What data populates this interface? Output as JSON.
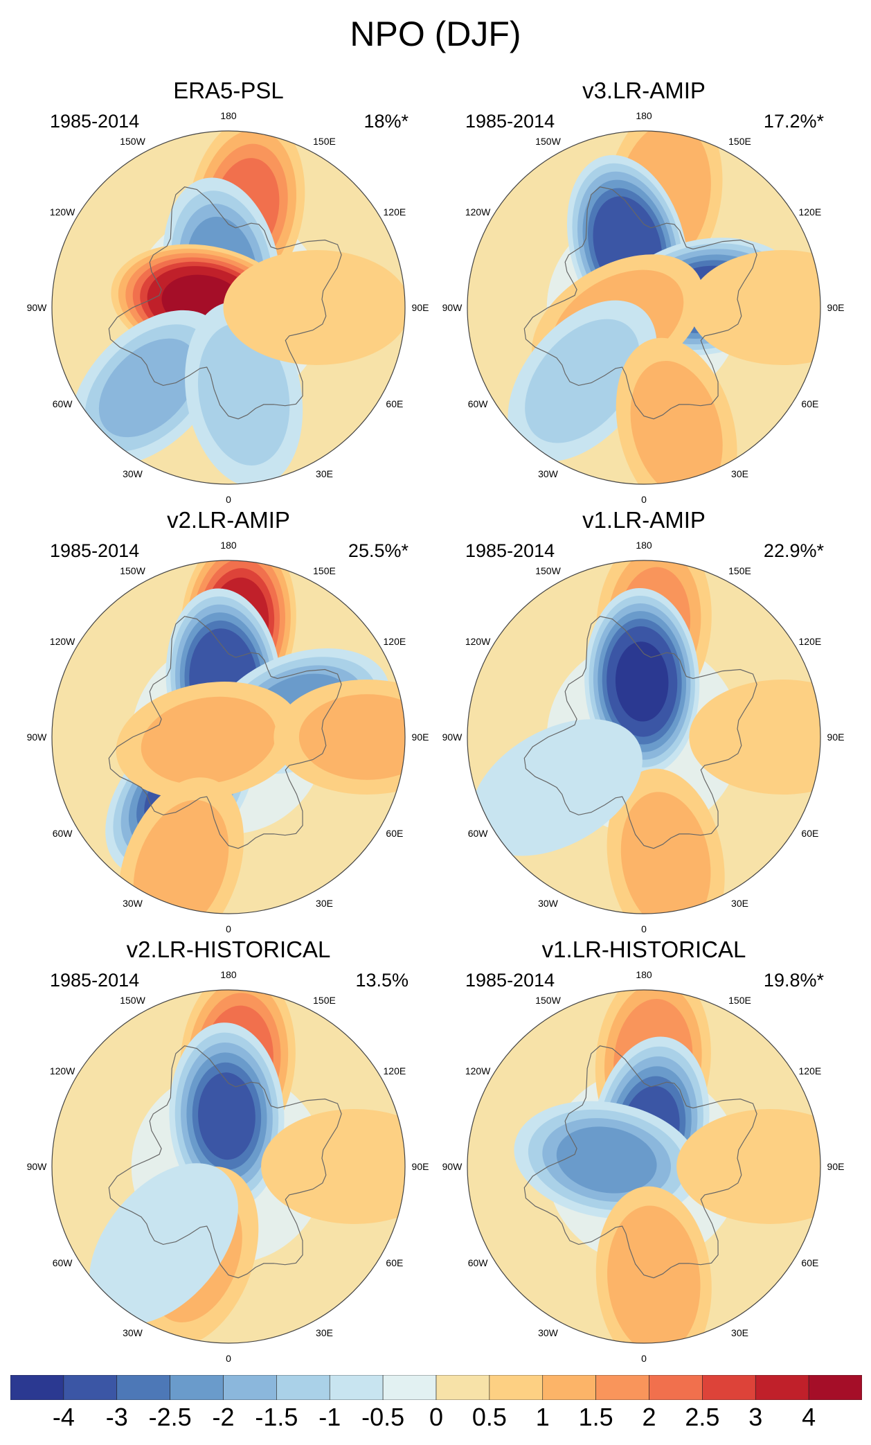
{
  "figure_title": "NPO (DJF)",
  "colors": {
    "-4.25": "#2b3991",
    "-3.5": "#3b56a5",
    "-2.75": "#4d78b7",
    "-2.25": "#6a9bcb",
    "-1.75": "#8bb7dc",
    "-1.25": "#aad1e8",
    "-0.75": "#c8e4f0",
    "-0.25": "#e2f1f2",
    "0.25": "#f7e2a8",
    "0.75": "#fdd083",
    "1.25": "#fcb468",
    "1.75": "#f9955b",
    "2.25": "#f1704d",
    "2.75": "#dd4339",
    "3.5": "#c0202a",
    "4.25": "#a50e28"
  },
  "chart_data": [
    {
      "type": "contour-map",
      "title": "ERA5-PSL",
      "period": "1985-2014",
      "variance": "18%*",
      "projection": "north polar stereographic",
      "lon_labels": [
        "180",
        "150E",
        "120E",
        "90E",
        "60E",
        "30E",
        "0",
        "30W",
        "60W",
        "90W",
        "120W",
        "150W"
      ],
      "features": [
        {
          "type": "high",
          "lon": 170,
          "colat": 40,
          "peak": 2.0
        },
        {
          "type": "low",
          "lon": -170,
          "colat": 15,
          "peak": -2.2
        },
        {
          "type": "high",
          "lon": -100,
          "colat": 10,
          "peak": 4.2
        },
        {
          "type": "low",
          "lon": -45,
          "colat": 45,
          "peak": -1.6
        },
        {
          "type": "low",
          "lon": 10,
          "colat": 35,
          "peak": -1.2
        },
        {
          "type": "high",
          "lon": 90,
          "colat": 35,
          "peak": 0.8
        }
      ]
    },
    {
      "type": "contour-map",
      "title": "v3.LR-AMIP",
      "period": "1985-2014",
      "variance": "17.2%*",
      "projection": "north polar stereographic",
      "lon_labels": [
        "180",
        "150E",
        "120E",
        "90E",
        "60E",
        "30E",
        "0",
        "30W",
        "60W",
        "90W",
        "120W",
        "150W"
      ],
      "features": [
        {
          "type": "high",
          "lon": 170,
          "colat": 45,
          "peak": 1.4
        },
        {
          "type": "low",
          "lon": -165,
          "colat": 25,
          "peak": -3.6
        },
        {
          "type": "low",
          "lon": 100,
          "colat": 25,
          "peak": -3.2
        },
        {
          "type": "high",
          "lon": -60,
          "colat": 12,
          "peak": 1.2
        },
        {
          "type": "low",
          "lon": -40,
          "colat": 38,
          "peak": -1.2
        },
        {
          "type": "high",
          "lon": 15,
          "colat": 50,
          "peak": 1.1
        },
        {
          "type": "high",
          "lon": 90,
          "colat": 55,
          "peak": 0.9
        }
      ]
    },
    {
      "type": "contour-map",
      "title": "v2.LR-AMIP",
      "period": "1985-2014",
      "variance": "25.5%*",
      "projection": "north polar stereographic",
      "lon_labels": [
        "180",
        "150E",
        "120E",
        "90E",
        "60E",
        "30E",
        "0",
        "30W",
        "60W",
        "90W",
        "120W",
        "150W"
      ],
      "features": [
        {
          "type": "high",
          "lon": 175,
          "colat": 45,
          "peak": 3.2
        },
        {
          "type": "low",
          "lon": -175,
          "colat": 22,
          "peak": -3.8
        },
        {
          "type": "low",
          "lon": -40,
          "colat": 30,
          "peak": -3.0
        },
        {
          "type": "low",
          "lon": 110,
          "colat": 30,
          "peak": -2.2
        },
        {
          "type": "high",
          "lon": -80,
          "colat": 8,
          "peak": 1.0
        },
        {
          "type": "high",
          "lon": -20,
          "colat": 55,
          "peak": 1.1
        },
        {
          "type": "high",
          "lon": 90,
          "colat": 55,
          "peak": 1.0
        }
      ]
    },
    {
      "type": "contour-map",
      "title": "v1.LR-AMIP",
      "period": "1985-2014",
      "variance": "22.9%*",
      "projection": "north polar stereographic",
      "lon_labels": [
        "180",
        "150E",
        "120E",
        "90E",
        "60E",
        "30E",
        "0",
        "30W",
        "60W",
        "90W",
        "120W",
        "150W"
      ],
      "features": [
        {
          "type": "high",
          "lon": 175,
          "colat": 45,
          "peak": 1.5
        },
        {
          "type": "low",
          "lon": -178,
          "colat": 22,
          "peak": -4.0
        },
        {
          "type": "high",
          "lon": 10,
          "colat": 50,
          "peak": 1.1
        },
        {
          "type": "high",
          "lon": 90,
          "colat": 55,
          "peak": 0.9
        },
        {
          "type": "low",
          "lon": -60,
          "colat": 40,
          "peak": -0.8
        }
      ]
    },
    {
      "type": "contour-map",
      "title": "v2.LR-HISTORICAL",
      "period": "1985-2014",
      "variance": "13.5%",
      "projection": "north polar stereographic",
      "lon_labels": [
        "180",
        "150E",
        "120E",
        "90E",
        "60E",
        "30E",
        "0",
        "30W",
        "60W",
        "90W",
        "120W",
        "150W"
      ],
      "features": [
        {
          "type": "high",
          "lon": 175,
          "colat": 42,
          "peak": 2.3
        },
        {
          "type": "low",
          "lon": -178,
          "colat": 20,
          "peak": -3.0
        },
        {
          "type": "high",
          "lon": -20,
          "colat": 38,
          "peak": 1.0
        },
        {
          "type": "high",
          "lon": 90,
          "colat": 50,
          "peak": 0.6
        },
        {
          "type": "low",
          "lon": -40,
          "colat": 40,
          "peak": -0.7
        }
      ]
    },
    {
      "type": "contour-map",
      "title": "v1.LR-HISTORICAL",
      "period": "1985-2014",
      "variance": "19.8%*",
      "projection": "north polar stereographic",
      "lon_labels": [
        "180",
        "150E",
        "120E",
        "90E",
        "60E",
        "30E",
        "0",
        "30W",
        "60W",
        "90W",
        "120W",
        "150W"
      ],
      "features": [
        {
          "type": "high",
          "lon": 175,
          "colat": 42,
          "peak": 1.8
        },
        {
          "type": "low",
          "lon": 170,
          "colat": 15,
          "peak": -3.0
        },
        {
          "type": "low",
          "lon": -100,
          "colat": 15,
          "peak": -2.0
        },
        {
          "type": "high",
          "lon": 5,
          "colat": 45,
          "peak": 1.4
        },
        {
          "type": "high",
          "lon": 90,
          "colat": 50,
          "peak": 0.8
        }
      ]
    },
    {
      "type": "colorbar",
      "tick_labels": [
        "-4",
        "-3",
        "-2.5",
        "-2",
        "-1.5",
        "-1",
        "-0.5",
        "0",
        "0.5",
        "1",
        "1.5",
        "2",
        "2.5",
        "3",
        "4"
      ],
      "levels": [
        -4.25,
        -3.5,
        -2.75,
        -2.25,
        -1.75,
        -1.25,
        -0.75,
        -0.25,
        0.25,
        0.75,
        1.25,
        1.75,
        2.25,
        2.75,
        3.5,
        4.25
      ]
    }
  ]
}
